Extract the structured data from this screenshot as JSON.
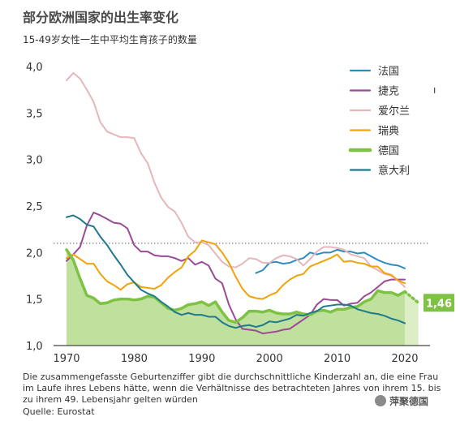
{
  "title": "部分欧洲国家的出生率变化",
  "subtitle": "15-49岁女性一生中平均生育孩子的数量",
  "note": "Die zusammengefasste Geburtenziffer gibt die durchschnittliche Kinderzahl an, die eine Frau im Laufe ihres Lebens hätte, wenn die Verhältnisse des betrachteten Jahres von ihrem 15. bis zu ihrem 49. Lebensjahr gelten würden",
  "source": "Quelle: Eurostat",
  "watermark": "萍聚德国",
  "corner_mark": "ı",
  "chart_data": {
    "type": "line",
    "title": "部分欧洲国家的出生率变化",
    "subtitle": "15-49岁女性一生中平均生育孩子的数量",
    "xlabel": "",
    "ylabel": "",
    "xlim": [
      1968,
      2023
    ],
    "ylim": [
      1.0,
      4.0
    ],
    "x_ticks": [
      1970,
      1980,
      1990,
      2000,
      2010,
      2020
    ],
    "y_ticks": [
      1.0,
      1.5,
      2.0,
      2.5,
      3.0,
      3.5,
      4.0
    ],
    "y_tick_labels": [
      "1,0",
      "1,5",
      "2,0",
      "2,5",
      "3,0",
      "3,5",
      "4,0"
    ],
    "replacement_line": 2.1,
    "legend_position": "top-right",
    "highlight_label": "1,46",
    "highlight_value": 1.46,
    "highlight_series": "德国",
    "forecast_years": [
      2021,
      2022
    ],
    "series": [
      {
        "name": "法国",
        "color": "#2e8bc0",
        "x": [
          1998,
          1999,
          2000,
          2001,
          2002,
          2003,
          2004,
          2005,
          2006,
          2007,
          2008,
          2009,
          2010,
          2011,
          2012,
          2013,
          2014,
          2015,
          2016,
          2017,
          2018,
          2019,
          2020
        ],
        "values": [
          1.78,
          1.81,
          1.89,
          1.9,
          1.88,
          1.89,
          1.92,
          1.94,
          2.0,
          1.98,
          2.0,
          2.0,
          2.03,
          2.01,
          2.01,
          1.99,
          2.0,
          1.96,
          1.92,
          1.89,
          1.87,
          1.86,
          1.83
        ]
      },
      {
        "name": "捷克",
        "color": "#9b4a97",
        "x": [
          1970,
          1971,
          1972,
          1973,
          1974,
          1975,
          1976,
          1977,
          1978,
          1979,
          1980,
          1981,
          1982,
          1983,
          1984,
          1985,
          1986,
          1987,
          1988,
          1989,
          1990,
          1991,
          1992,
          1993,
          1994,
          1995,
          1996,
          1997,
          1998,
          1999,
          2000,
          2001,
          2002,
          2003,
          2004,
          2005,
          2006,
          2007,
          2008,
          2009,
          2010,
          2011,
          2012,
          2013,
          2014,
          2015,
          2016,
          2017,
          2018,
          2019,
          2020
        ],
        "values": [
          1.91,
          1.98,
          2.06,
          2.29,
          2.43,
          2.4,
          2.36,
          2.32,
          2.31,
          2.26,
          2.08,
          2.01,
          2.01,
          1.97,
          1.96,
          1.96,
          1.94,
          1.91,
          1.94,
          1.87,
          1.9,
          1.86,
          1.72,
          1.67,
          1.44,
          1.28,
          1.18,
          1.17,
          1.16,
          1.13,
          1.14,
          1.15,
          1.17,
          1.18,
          1.23,
          1.28,
          1.33,
          1.44,
          1.5,
          1.49,
          1.49,
          1.43,
          1.45,
          1.46,
          1.53,
          1.57,
          1.63,
          1.69,
          1.71,
          1.71,
          1.71
        ]
      },
      {
        "name": "爱尔兰",
        "color": "#e5b7bb",
        "x": [
          1970,
          1971,
          1972,
          1973,
          1974,
          1975,
          1976,
          1977,
          1978,
          1979,
          1980,
          1981,
          1982,
          1983,
          1984,
          1985,
          1986,
          1987,
          1988,
          1989,
          1990,
          1991,
          1992,
          1993,
          1994,
          1995,
          1996,
          1997,
          1998,
          1999,
          2000,
          2001,
          2002,
          2003,
          2004,
          2005,
          2006,
          2007,
          2008,
          2009,
          2010,
          2011,
          2012,
          2013,
          2014,
          2015,
          2016,
          2017,
          2018,
          2019,
          2020
        ],
        "values": [
          3.85,
          3.93,
          3.87,
          3.75,
          3.62,
          3.4,
          3.3,
          3.27,
          3.24,
          3.24,
          3.23,
          3.07,
          2.96,
          2.75,
          2.59,
          2.49,
          2.44,
          2.32,
          2.17,
          2.11,
          2.11,
          2.08,
          1.99,
          1.9,
          1.85,
          1.84,
          1.88,
          1.94,
          1.93,
          1.89,
          1.89,
          1.94,
          1.97,
          1.96,
          1.93,
          1.86,
          1.93,
          2.01,
          2.06,
          2.06,
          2.05,
          2.03,
          1.98,
          1.96,
          1.94,
          1.85,
          1.81,
          1.77,
          1.75,
          1.7,
          1.63
        ]
      },
      {
        "name": "瑞典",
        "color": "#f0a30a",
        "x": [
          1970,
          1971,
          1972,
          1973,
          1974,
          1975,
          1976,
          1977,
          1978,
          1979,
          1980,
          1981,
          1982,
          1983,
          1984,
          1985,
          1986,
          1987,
          1988,
          1989,
          1990,
          1991,
          1992,
          1993,
          1994,
          1995,
          1996,
          1997,
          1998,
          1999,
          2000,
          2001,
          2002,
          2003,
          2004,
          2005,
          2006,
          2007,
          2008,
          2009,
          2010,
          2011,
          2012,
          2013,
          2014,
          2015,
          2016,
          2017,
          2018,
          2019,
          2020
        ],
        "values": [
          1.94,
          1.98,
          1.93,
          1.88,
          1.88,
          1.77,
          1.69,
          1.65,
          1.6,
          1.66,
          1.68,
          1.63,
          1.62,
          1.61,
          1.65,
          1.73,
          1.79,
          1.84,
          1.96,
          2.02,
          2.13,
          2.11,
          2.09,
          2.0,
          1.89,
          1.74,
          1.61,
          1.53,
          1.51,
          1.5,
          1.54,
          1.57,
          1.65,
          1.71,
          1.75,
          1.77,
          1.85,
          1.88,
          1.91,
          1.94,
          1.98,
          1.9,
          1.91,
          1.89,
          1.88,
          1.85,
          1.85,
          1.78,
          1.76,
          1.7,
          1.67
        ]
      },
      {
        "name": "德国",
        "color": "#7dc243",
        "x": [
          1970,
          1971,
          1972,
          1973,
          1974,
          1975,
          1976,
          1977,
          1978,
          1979,
          1980,
          1981,
          1982,
          1983,
          1984,
          1985,
          1986,
          1987,
          1988,
          1989,
          1990,
          1991,
          1992,
          1993,
          1994,
          1995,
          1996,
          1997,
          1998,
          1999,
          2000,
          2001,
          2002,
          2003,
          2004,
          2005,
          2006,
          2007,
          2008,
          2009,
          2010,
          2011,
          2012,
          2013,
          2014,
          2015,
          2016,
          2017,
          2018,
          2019,
          2020
        ],
        "values": [
          2.03,
          1.92,
          1.72,
          1.54,
          1.51,
          1.45,
          1.46,
          1.49,
          1.5,
          1.5,
          1.49,
          1.5,
          1.53,
          1.52,
          1.46,
          1.4,
          1.38,
          1.4,
          1.44,
          1.45,
          1.47,
          1.43,
          1.47,
          1.36,
          1.27,
          1.25,
          1.3,
          1.37,
          1.37,
          1.36,
          1.38,
          1.35,
          1.34,
          1.34,
          1.36,
          1.34,
          1.33,
          1.37,
          1.38,
          1.36,
          1.39,
          1.39,
          1.41,
          1.42,
          1.47,
          1.5,
          1.59,
          1.57,
          1.57,
          1.54,
          1.58
        ]
      },
      {
        "name": "意大利",
        "color": "#1f7a8c",
        "x": [
          1970,
          1971,
          1972,
          1973,
          1974,
          1975,
          1976,
          1977,
          1978,
          1979,
          1980,
          1981,
          1982,
          1983,
          1984,
          1985,
          1986,
          1987,
          1988,
          1989,
          1990,
          1991,
          1992,
          1993,
          1994,
          1995,
          1996,
          1997,
          1998,
          1999,
          2000,
          2001,
          2002,
          2003,
          2004,
          2005,
          2006,
          2007,
          2008,
          2009,
          2010,
          2011,
          2012,
          2013,
          2014,
          2015,
          2016,
          2017,
          2018,
          2019,
          2020
        ],
        "values": [
          2.38,
          2.4,
          2.36,
          2.3,
          2.28,
          2.17,
          2.08,
          1.97,
          1.87,
          1.76,
          1.68,
          1.6,
          1.56,
          1.53,
          1.47,
          1.42,
          1.36,
          1.33,
          1.35,
          1.33,
          1.33,
          1.31,
          1.31,
          1.25,
          1.21,
          1.19,
          1.21,
          1.22,
          1.2,
          1.22,
          1.26,
          1.25,
          1.27,
          1.29,
          1.33,
          1.32,
          1.35,
          1.37,
          1.42,
          1.43,
          1.44,
          1.44,
          1.43,
          1.39,
          1.37,
          1.35,
          1.34,
          1.32,
          1.29,
          1.27,
          1.24
        ]
      }
    ]
  }
}
